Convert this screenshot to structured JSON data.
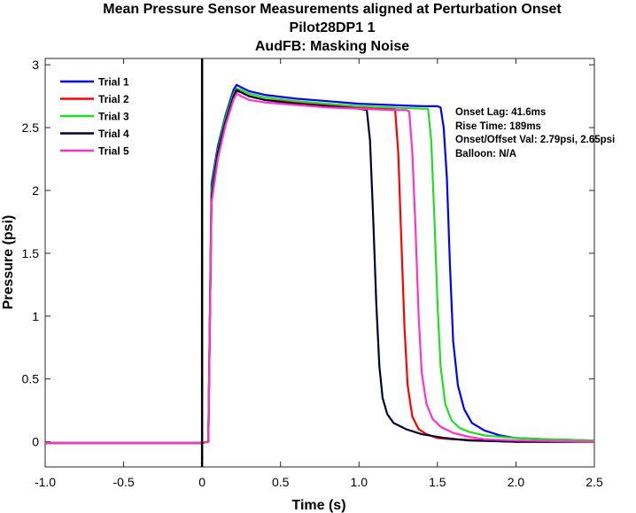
{
  "chart_data": {
    "type": "line",
    "title_lines": [
      "Mean Pressure Sensor Measurements aligned at Perturbation Onset",
      "Pilot28DP1 1",
      "AudFB: Masking Noise"
    ],
    "xlabel": "Time (s)",
    "ylabel": "Pressure (psi)",
    "xlim": [
      -1.0,
      2.5
    ],
    "ylim": [
      -0.2,
      3.05
    ],
    "x_ticks": [
      -1.0,
      -0.5,
      0,
      0.5,
      1.0,
      1.5,
      2.0,
      2.5
    ],
    "x_tick_labels": [
      "-1.0",
      "-0.5",
      "0",
      "0.5",
      "1.0",
      "1.5",
      "2.0",
      "2.5"
    ],
    "y_ticks": [
      0,
      0.5,
      1,
      1.5,
      2,
      2.5,
      3
    ],
    "y_tick_labels": [
      "0",
      "0.5",
      "1",
      "1.5",
      "2",
      "2.5",
      "3"
    ],
    "grid": false,
    "legend_position": "top-left",
    "perturbation_onset_x": 0,
    "annotations": [
      "Onset Lag: 41.6ms",
      "Rise Time: 189ms",
      "Onset/Offset Val: 2.79psi, 2.65psi",
      "Balloon: N/A"
    ],
    "series": [
      {
        "name": "Trial 1",
        "color": "#0000ff",
        "x": [
          -1.0,
          0.0,
          0.04,
          0.06,
          0.1,
          0.15,
          0.2,
          0.22,
          0.25,
          0.3,
          0.4,
          0.6,
          0.8,
          1.0,
          1.2,
          1.4,
          1.5,
          1.52,
          1.54,
          1.56,
          1.58,
          1.6,
          1.63,
          1.67,
          1.72,
          1.8,
          1.9,
          2.0,
          2.2,
          2.5
        ],
        "y": [
          -0.01,
          -0.01,
          0.0,
          2.05,
          2.35,
          2.6,
          2.8,
          2.84,
          2.82,
          2.79,
          2.76,
          2.73,
          2.71,
          2.69,
          2.68,
          2.67,
          2.67,
          2.66,
          2.5,
          2.1,
          1.4,
          0.8,
          0.45,
          0.26,
          0.15,
          0.09,
          0.05,
          0.03,
          0.02,
          0.01
        ]
      },
      {
        "name": "Trial 2",
        "color": "#ff0000",
        "x": [
          -1.0,
          0.0,
          0.04,
          0.06,
          0.1,
          0.15,
          0.2,
          0.22,
          0.25,
          0.3,
          0.4,
          0.6,
          0.8,
          1.0,
          1.1,
          1.2,
          1.23,
          1.25,
          1.27,
          1.29,
          1.31,
          1.34,
          1.38,
          1.43,
          1.5,
          1.6,
          1.8,
          2.0,
          2.5
        ],
        "y": [
          -0.01,
          -0.01,
          0.0,
          1.95,
          2.3,
          2.55,
          2.74,
          2.79,
          2.78,
          2.75,
          2.72,
          2.7,
          2.68,
          2.66,
          2.65,
          2.65,
          2.65,
          2.3,
          1.6,
          0.9,
          0.45,
          0.2,
          0.1,
          0.06,
          0.03,
          0.02,
          0.01,
          0.0,
          0.0
        ]
      },
      {
        "name": "Trial 3",
        "color": "#22dd22",
        "x": [
          -1.0,
          0.0,
          0.04,
          0.06,
          0.1,
          0.15,
          0.2,
          0.22,
          0.25,
          0.3,
          0.4,
          0.6,
          0.8,
          1.0,
          1.2,
          1.4,
          1.44,
          1.46,
          1.48,
          1.5,
          1.52,
          1.55,
          1.59,
          1.64,
          1.7,
          1.8,
          1.9,
          2.0,
          2.2,
          2.5
        ],
        "y": [
          -0.01,
          -0.01,
          0.0,
          2.0,
          2.32,
          2.58,
          2.77,
          2.81,
          2.8,
          2.77,
          2.74,
          2.71,
          2.69,
          2.67,
          2.66,
          2.65,
          2.65,
          2.4,
          1.8,
          1.1,
          0.6,
          0.3,
          0.17,
          0.11,
          0.08,
          0.05,
          0.04,
          0.03,
          0.02,
          0.01
        ]
      },
      {
        "name": "Trial 4",
        "color": "#000033",
        "x": [
          -1.0,
          0.0,
          0.04,
          0.06,
          0.1,
          0.15,
          0.2,
          0.22,
          0.25,
          0.3,
          0.4,
          0.6,
          0.8,
          1.0,
          1.05,
          1.07,
          1.09,
          1.11,
          1.13,
          1.15,
          1.18,
          1.22,
          1.3,
          1.4,
          1.55,
          1.7,
          2.0,
          2.5
        ],
        "y": [
          -0.01,
          -0.01,
          0.0,
          1.95,
          2.3,
          2.55,
          2.75,
          2.8,
          2.78,
          2.75,
          2.72,
          2.69,
          2.67,
          2.65,
          2.64,
          2.4,
          1.8,
          1.1,
          0.6,
          0.35,
          0.22,
          0.15,
          0.1,
          0.06,
          0.03,
          0.01,
          0.0,
          0.0
        ]
      },
      {
        "name": "Trial 5",
        "color": "#ff33cc",
        "x": [
          -1.0,
          0.0,
          0.04,
          0.06,
          0.1,
          0.15,
          0.2,
          0.22,
          0.25,
          0.3,
          0.4,
          0.6,
          0.8,
          1.0,
          1.2,
          1.3,
          1.32,
          1.34,
          1.36,
          1.38,
          1.4,
          1.43,
          1.47,
          1.52,
          1.6,
          1.7,
          1.8,
          2.0,
          2.5
        ],
        "y": [
          -0.01,
          -0.01,
          0.0,
          1.9,
          2.25,
          2.52,
          2.72,
          2.77,
          2.75,
          2.72,
          2.7,
          2.68,
          2.66,
          2.65,
          2.64,
          2.64,
          2.63,
          2.3,
          1.7,
          1.0,
          0.55,
          0.3,
          0.18,
          0.12,
          0.07,
          0.04,
          0.02,
          0.01,
          0.0
        ]
      }
    ]
  }
}
